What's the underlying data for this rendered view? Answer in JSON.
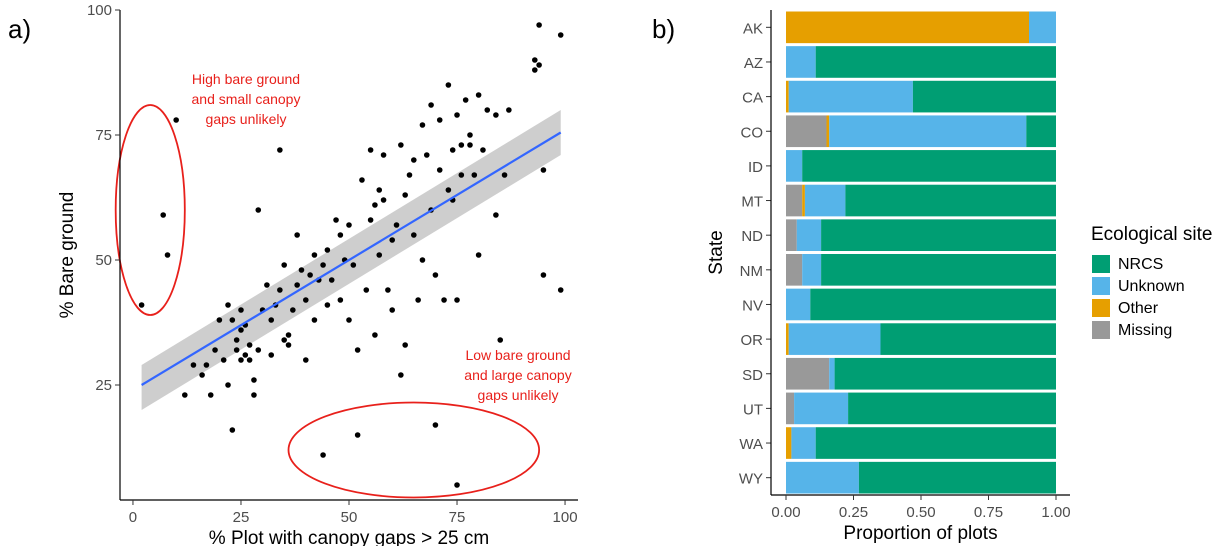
{
  "panels": {
    "a": "a)",
    "b": "b)"
  },
  "colors": {
    "NRCS": "#009e73",
    "Unknown": "#56b4e9",
    "Other": "#e69f00",
    "Missing": "#999999",
    "fit_line": "#3366ff",
    "ci_band": "#bdbdbd",
    "annotation": "#e8201b",
    "points": "#000000"
  },
  "chart_data": [
    {
      "type": "scatter",
      "xlabel": "% Plot with canopy gaps > 25 cm",
      "ylabel": "% Bare ground",
      "xlim": [
        -3,
        103
      ],
      "ylim": [
        2,
        100
      ],
      "xticks": [
        0,
        25,
        50,
        75,
        100
      ],
      "yticks": [
        25,
        50,
        75,
        100
      ],
      "grid": false,
      "fit_line": {
        "x": [
          2,
          99
        ],
        "y": [
          25,
          75.5
        ],
        "ci_at_x": [
          2,
          99
        ],
        "ci_lower": [
          20,
          71
        ],
        "ci_upper": [
          29,
          80
        ]
      },
      "annotations": [
        {
          "text": [
            "High bare ground",
            "and small canopy",
            "gaps unlikely"
          ],
          "ellipse_center": [
            4,
            60
          ],
          "ellipse_radius": [
            8,
            21
          ]
        },
        {
          "text": [
            "Low bare ground",
            "and large canopy",
            "gaps unlikely"
          ],
          "ellipse_center": [
            65,
            12
          ],
          "ellipse_radius": [
            29,
            9.5
          ]
        }
      ],
      "points": [
        [
          2,
          41
        ],
        [
          7,
          59
        ],
        [
          8,
          51
        ],
        [
          10,
          78
        ],
        [
          12,
          23
        ],
        [
          14,
          29
        ],
        [
          16,
          27
        ],
        [
          17,
          29
        ],
        [
          18,
          23
        ],
        [
          19,
          32
        ],
        [
          20,
          38
        ],
        [
          21,
          30
        ],
        [
          22,
          25
        ],
        [
          22,
          41
        ],
        [
          23,
          16
        ],
        [
          23,
          38
        ],
        [
          24,
          32
        ],
        [
          24,
          34
        ],
        [
          25,
          30
        ],
        [
          25,
          36
        ],
        [
          25,
          40
        ],
        [
          26,
          31
        ],
        [
          26,
          37
        ],
        [
          27,
          33
        ],
        [
          27,
          30
        ],
        [
          28,
          26
        ],
        [
          28,
          23
        ],
        [
          29,
          60
        ],
        [
          29,
          32
        ],
        [
          30,
          40
        ],
        [
          31,
          45
        ],
        [
          32,
          38
        ],
        [
          32,
          31
        ],
        [
          33,
          41
        ],
        [
          34,
          72
        ],
        [
          34,
          44
        ],
        [
          35,
          49
        ],
        [
          35,
          34
        ],
        [
          36,
          35
        ],
        [
          36,
          33
        ],
        [
          37,
          40
        ],
        [
          38,
          55
        ],
        [
          38,
          45
        ],
        [
          39,
          48
        ],
        [
          40,
          30
        ],
        [
          40,
          42
        ],
        [
          41,
          47
        ],
        [
          42,
          51
        ],
        [
          42,
          38
        ],
        [
          43,
          46
        ],
        [
          44,
          11
        ],
        [
          44,
          49
        ],
        [
          45,
          41
        ],
        [
          45,
          52
        ],
        [
          46,
          46
        ],
        [
          47,
          58
        ],
        [
          48,
          55
        ],
        [
          48,
          42
        ],
        [
          49,
          50
        ],
        [
          50,
          38
        ],
        [
          50,
          57
        ],
        [
          51,
          49
        ],
        [
          52,
          15
        ],
        [
          52,
          32
        ],
        [
          53,
          66
        ],
        [
          54,
          44
        ],
        [
          55,
          58
        ],
        [
          55,
          72
        ],
        [
          56,
          61
        ],
        [
          56,
          35
        ],
        [
          57,
          64
        ],
        [
          57,
          51
        ],
        [
          58,
          62
        ],
        [
          58,
          71
        ],
        [
          59,
          44
        ],
        [
          60,
          40
        ],
        [
          60,
          54
        ],
        [
          61,
          57
        ],
        [
          62,
          73
        ],
        [
          62,
          27
        ],
        [
          63,
          63
        ],
        [
          63,
          33
        ],
        [
          64,
          67
        ],
        [
          65,
          70
        ],
        [
          65,
          55
        ],
        [
          66,
          42
        ],
        [
          67,
          77
        ],
        [
          67,
          50
        ],
        [
          68,
          71
        ],
        [
          69,
          81
        ],
        [
          69,
          60
        ],
        [
          70,
          47
        ],
        [
          70,
          17
        ],
        [
          71,
          78
        ],
        [
          71,
          68
        ],
        [
          72,
          42
        ],
        [
          73,
          64
        ],
        [
          73,
          85
        ],
        [
          74,
          62
        ],
        [
          74,
          72
        ],
        [
          75,
          79
        ],
        [
          75,
          42
        ],
        [
          75,
          5
        ],
        [
          76,
          67
        ],
        [
          76,
          73
        ],
        [
          77,
          82
        ],
        [
          78,
          75
        ],
        [
          78,
          73
        ],
        [
          79,
          67
        ],
        [
          80,
          51
        ],
        [
          80,
          83
        ],
        [
          81,
          72
        ],
        [
          82,
          80
        ],
        [
          84,
          59
        ],
        [
          84,
          79
        ],
        [
          85,
          34
        ],
        [
          86,
          67
        ],
        [
          87,
          80
        ],
        [
          93,
          88
        ],
        [
          93,
          90
        ],
        [
          94,
          97
        ],
        [
          94,
          89
        ],
        [
          95,
          68
        ],
        [
          95,
          47
        ],
        [
          99,
          95
        ],
        [
          99,
          44
        ]
      ]
    },
    {
      "type": "bar",
      "stacked": true,
      "orientation": "horizontal",
      "xlabel": "Proportion of plots",
      "ylabel": "State",
      "xlim": [
        0,
        1
      ],
      "xticks": [
        "0.00",
        "0.25",
        "0.50",
        "0.75",
        "1.00"
      ],
      "categories": [
        "AK",
        "AZ",
        "CA",
        "CO",
        "ID",
        "MT",
        "ND",
        "NM",
        "NV",
        "OR",
        "SD",
        "UT",
        "WA",
        "WY"
      ],
      "legend_title": "Ecological site",
      "legend_entries": [
        "NRCS",
        "Unknown",
        "Other",
        "Missing"
      ],
      "legend_position": "right",
      "stack_order": [
        "Missing",
        "Other",
        "Unknown",
        "NRCS"
      ],
      "series": [
        {
          "name": "Missing",
          "values": [
            0,
            0,
            0,
            0.15,
            0,
            0.06,
            0.04,
            0.06,
            0,
            0,
            0.16,
            0.03,
            0,
            0
          ]
        },
        {
          "name": "Other",
          "values": [
            0.9,
            0,
            0.01,
            0.01,
            0,
            0.01,
            0,
            0,
            0,
            0.01,
            0,
            0,
            0.02,
            0
          ]
        },
        {
          "name": "Unknown",
          "values": [
            0.1,
            0.11,
            0.46,
            0.73,
            0.06,
            0.15,
            0.09,
            0.07,
            0.09,
            0.34,
            0.02,
            0.2,
            0.09,
            0.27
          ]
        },
        {
          "name": "NRCS",
          "values": [
            0,
            0.89,
            0.53,
            0.11,
            0.94,
            0.78,
            0.87,
            0.87,
            0.91,
            0.65,
            0.82,
            0.77,
            0.89,
            0.73
          ]
        }
      ]
    }
  ]
}
